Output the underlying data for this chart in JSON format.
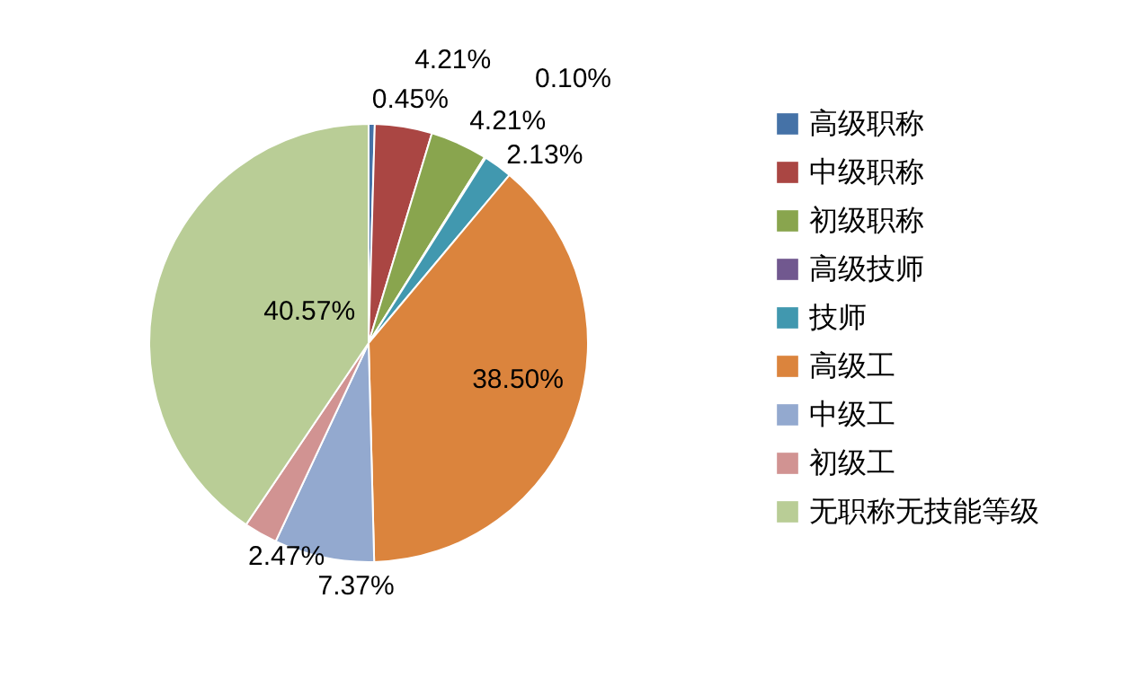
{
  "chart_data": {
    "type": "pie",
    "categories": [
      "高级职称",
      "中级职称",
      "初级职称",
      "高级技师",
      "技师",
      "高级工",
      "中级工",
      "初级工",
      "无职称无技能等级"
    ],
    "values": [
      0.45,
      4.21,
      4.21,
      0.1,
      2.13,
      38.5,
      7.37,
      2.47,
      40.57
    ],
    "value_labels": [
      "0.45%",
      "4.21%",
      "4.21%",
      "0.10%",
      "2.13%",
      "38.50%",
      "7.37%",
      "2.47%",
      "40.57%"
    ],
    "colors": [
      "#4572a7",
      "#aa4643",
      "#89a54e",
      "#71588f",
      "#4198af",
      "#db843d",
      "#93a9cf",
      "#d19392",
      "#b9cd96"
    ],
    "legend": "right"
  }
}
